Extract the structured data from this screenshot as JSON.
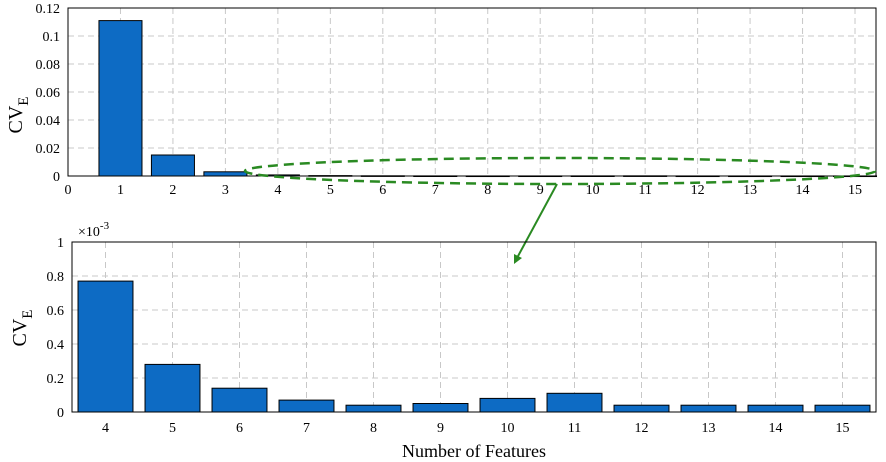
{
  "colors": {
    "bar_fill": "#0d6bc4",
    "bar_stroke": "#000000",
    "grid": "#c8c8c8",
    "annotation": "#2a8a22"
  },
  "chart_data": [
    {
      "type": "bar",
      "xlabel": "",
      "ylabel_main": "CV",
      "ylabel_sub": "E",
      "categories": [
        "1",
        "2",
        "3",
        "4",
        "5",
        "6",
        "7",
        "8",
        "9",
        "10",
        "11",
        "12",
        "13",
        "14",
        "15"
      ],
      "values": [
        0.111,
        0.015,
        0.003,
        0.00077,
        0.00028,
        0.00014,
        7e-05,
        4e-05,
        5e-05,
        8e-05,
        0.00011,
        4e-05,
        4e-05,
        4e-05,
        4e-05
      ],
      "xlim": [
        0,
        15.4
      ],
      "xticks": [
        "0",
        "1",
        "2",
        "3",
        "4",
        "5",
        "6",
        "7",
        "8",
        "9",
        "10",
        "11",
        "12",
        "13",
        "14",
        "15"
      ],
      "ylim": [
        0,
        0.12
      ],
      "yticks": [
        "0",
        "0.02",
        "0.04",
        "0.06",
        "0.08",
        "0.1",
        "0.12"
      ],
      "grid": true,
      "annotation": "dashed ellipse around bars 4 to 15 with an arrow pointing to the zoomed chart below"
    },
    {
      "type": "bar",
      "xlabel": "Number of Features",
      "ylabel_main": "CV",
      "ylabel_sub": "E",
      "exponent_base": "×10",
      "exponent_power": "-3",
      "categories": [
        "4",
        "5",
        "6",
        "7",
        "8",
        "9",
        "10",
        "11",
        "12",
        "13",
        "14",
        "15"
      ],
      "values": [
        0.77,
        0.28,
        0.14,
        0.07,
        0.04,
        0.05,
        0.08,
        0.11,
        0.04,
        0.04,
        0.04,
        0.04
      ],
      "ylim": [
        0,
        1
      ],
      "yticks": [
        "0",
        "0.2",
        "0.4",
        "0.6",
        "0.8",
        "1"
      ],
      "grid": true
    }
  ]
}
